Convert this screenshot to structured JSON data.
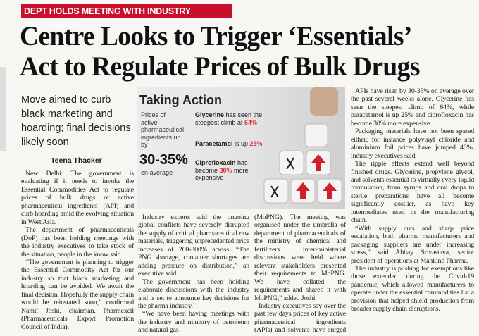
{
  "kicker": "DEPT HOLDS MEETING WITH INDUSTRY EXECUTIVES",
  "headline": [
    "Centre Looks to Trigger ‘Essentials’",
    "Act to Regulate Prices of Bulk Drugs"
  ],
  "deck": "Move aimed to curb black marketing and hoarding; final decisions likely soon",
  "byline": "Teena Thacker",
  "graphic": {
    "title": "Taking Action",
    "lead": "Prices of active pharmaceutical ingredients up by",
    "figure": "30-35%",
    "figure_note": "on average",
    "items": [
      [
        "Glycerine",
        " has seen the steepest climb at ",
        "64%"
      ],
      [
        "Paracetamol",
        " is up ",
        "25%"
      ],
      [
        "Ciprofloxacin",
        " has become ",
        "30%",
        " more expensive"
      ]
    ]
  },
  "columns": [
    [
      "New Delhi: The government is evaluating if it needs to invoke the Essential Commodities Act to regulate prices of bulk drugs or active pharmaceutical ingredients (API) and curb hoarding amid the evolving situation in West Asia.",
      "The department of pharmaceuticals (DoP) has been holding meetings with the industry executives to take stock of the situation, people in the know said.",
      "“The government is planning to trigger the Essential Commodity Act for our industry so that black marketing and hoarding can be avoided. We await the final decision. Hopefully the supply chain would be reinstated soon,” confirmed Namit Joshi, chairman, Pharmexcil (Pharmaceuticals Export Promotion Council of India)."
    ],
    [
      "Industry experts said the ongoing global conflicts have severely disrupted the supply of critical pharmaceutical raw materials, triggering unprecedented price increases of 200-300% across. “The PNG shortage, container shortages are adding pressure on distribution,” an executive said.",
      "The government has been holding elaborate discussions with the industry and is set to announce key decisions for the pharma industry.",
      "“We have been having meetings with the industry and ministry of petroleum and natural gas"
    ],
    [
      "(MoPNG). The meeting was organised under the umbrella of department of pharmaceuticals of the ministry of chemical and fertilizers. Inter-ministerial discussions were held where relevant stakeholders presented their requirements to MoPNG. We have collated the requirements and shared it with MoPNG,” added Joshi.",
      "Industry executives say over the past few days prices of key active pharmaceutical ingredients (APIs) and solvents have surged sharply amid the ongoing war, dealing a fresh blow to them."
    ],
    [
      "APIs have risen by 30-35% on average over the past several weeks alone. Glycerine has seen the steepest climb of 64%, while paracetamol is up 25% and ciprofloxacin has become 30% more expensive.",
      "Packaging materials have not been spared either; for instance polyvinyl chloride and aluminium foil prices have jumped 40%, industry executives said.",
      "The ripple effects extend well beyond finished drugs. Glycerine, propylene glycol, and solvents essential to virtually every liquid formulation, from syrups and oral drops to sterile preparations have all become significantly costlier, as have key intermediates used in the manufacturing chain.",
      "“With supply cuts and sharp price escalation, both pharma manufacturers and packaging suppliers are under increasing stress,” said Abhay Srivastava, senior president of operations at Mankind Pharma.",
      "The industry is pushing for exemptions like those extended during the Covid-19 pandemic, which allowed manufacturers to operate under the essential commodities list a provision that helped shield production from broader supply chain disruptions."
    ]
  ]
}
